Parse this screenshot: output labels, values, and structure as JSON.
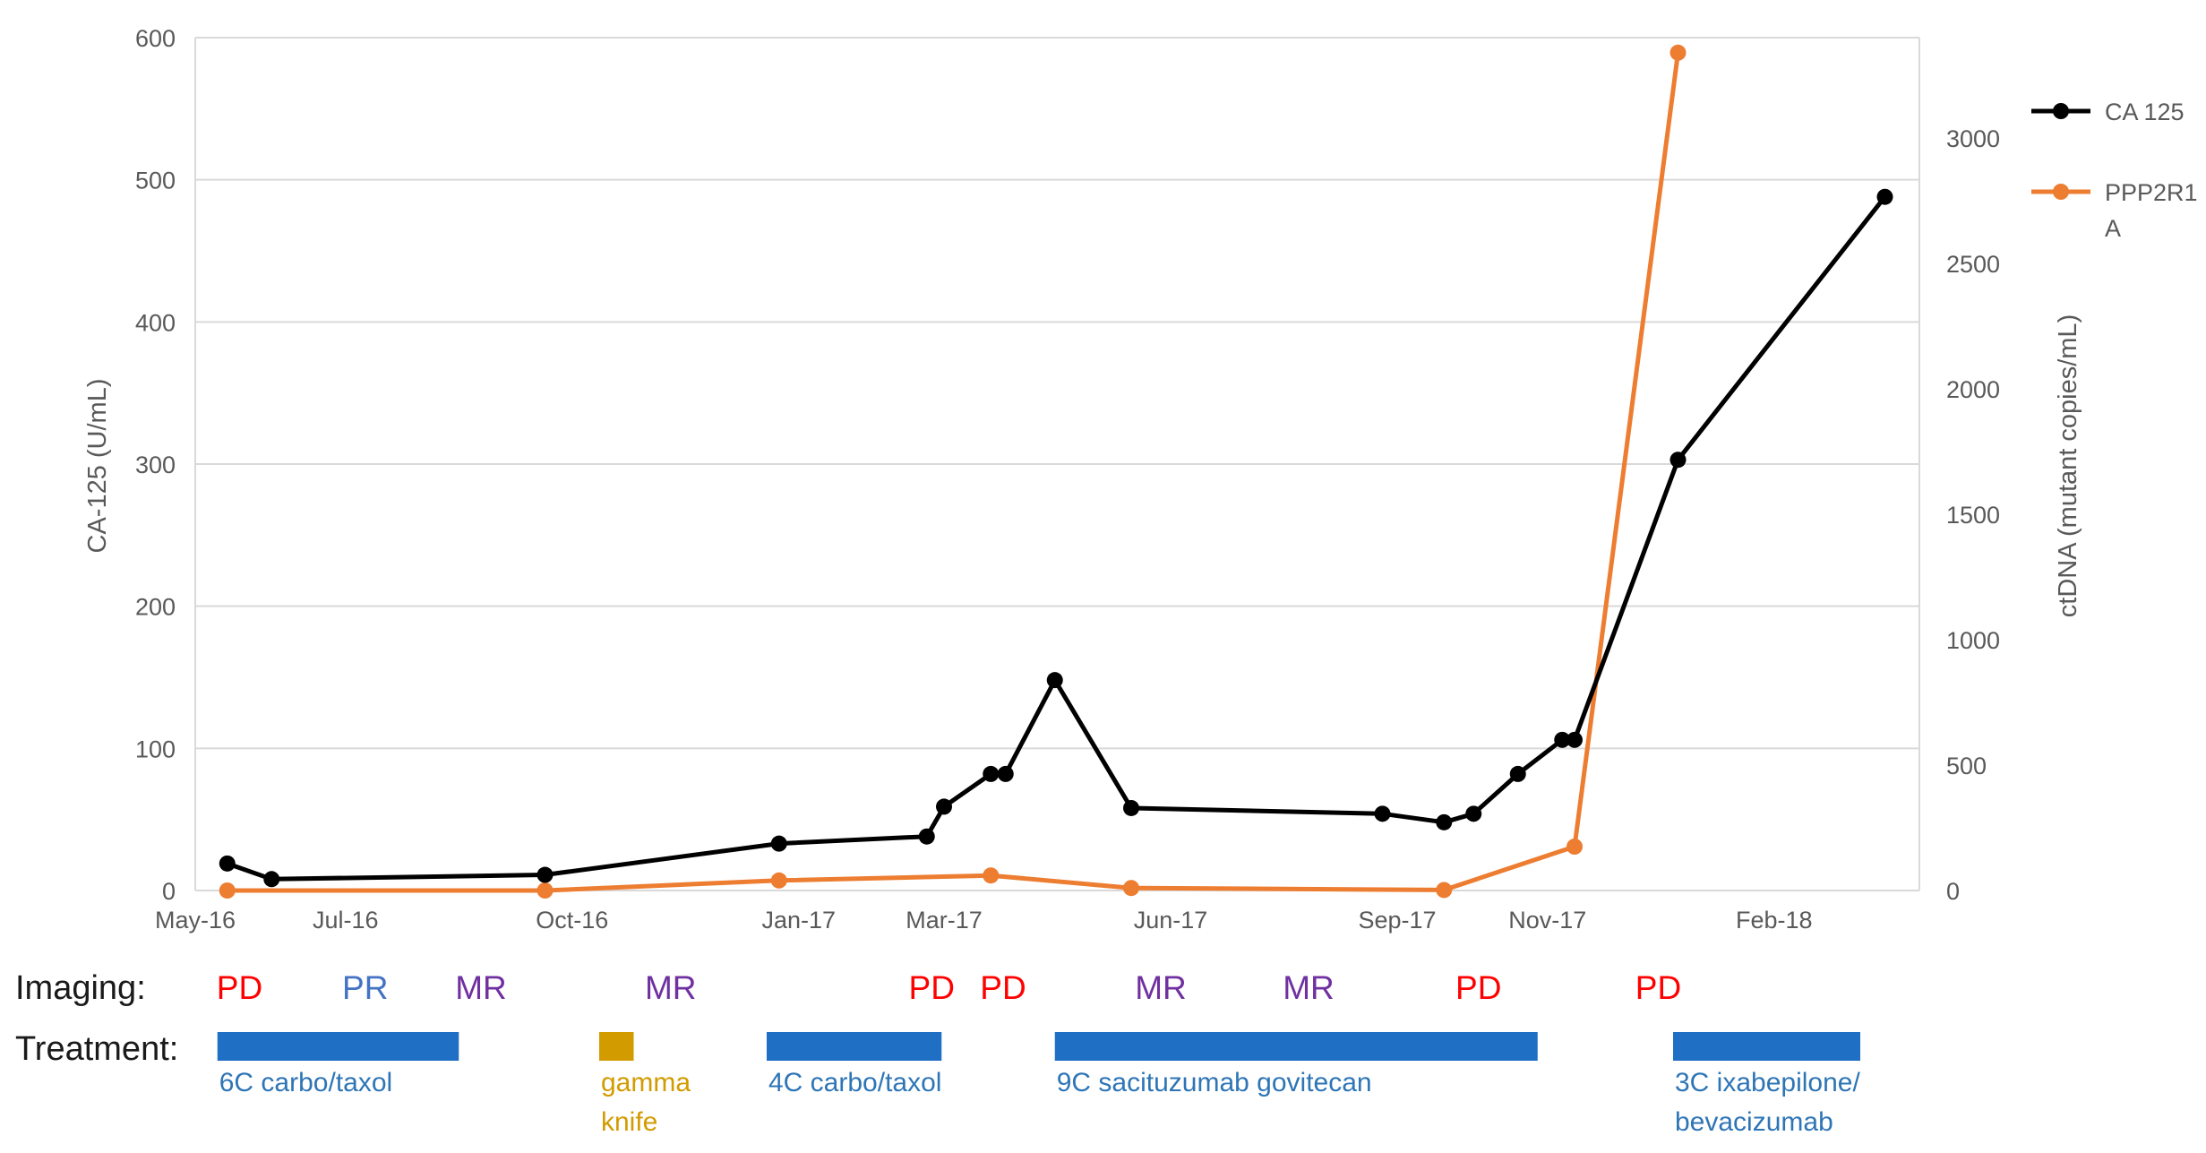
{
  "chart_data": {
    "type": "line",
    "x_axis": {
      "kind": "date",
      "range": [
        "2016-05-01",
        "2018-04-01"
      ],
      "tick_labels": [
        "May-16",
        "Jul-16",
        "Oct-16",
        "Jan-17",
        "Mar-17",
        "Jun-17",
        "Sep-17",
        "Nov-17",
        "Feb-18"
      ],
      "tick_dates": [
        "2016-05-01",
        "2016-07-01",
        "2016-10-01",
        "2017-01-01",
        "2017-03-01",
        "2017-06-01",
        "2017-09-01",
        "2017-11-01",
        "2018-02-01"
      ]
    },
    "y_left": {
      "label": "CA-125 (U/mL)",
      "range": [
        0,
        600
      ],
      "ticks": [
        0,
        100,
        200,
        300,
        400,
        500,
        600
      ]
    },
    "y_right": {
      "label": "ctDNA (mutant  copies/mL)",
      "range": [
        0,
        3400
      ],
      "ticks": [
        0,
        500,
        1000,
        1500,
        2000,
        2500,
        3000
      ]
    },
    "grid": true,
    "legend_position": "right",
    "series": [
      {
        "name": "CA 125",
        "axis": "left",
        "color": "#000000",
        "points": [
          {
            "x": "2016-05-14",
            "y": 19
          },
          {
            "x": "2016-06-01",
            "y": 8
          },
          {
            "x": "2016-09-20",
            "y": 11
          },
          {
            "x": "2016-12-24",
            "y": 33
          },
          {
            "x": "2017-02-22",
            "y": 38
          },
          {
            "x": "2017-03-01",
            "y": 59
          },
          {
            "x": "2017-03-20",
            "y": 82
          },
          {
            "x": "2017-03-26",
            "y": 82
          },
          {
            "x": "2017-04-15",
            "y": 148
          },
          {
            "x": "2017-05-16",
            "y": 58
          },
          {
            "x": "2017-08-26",
            "y": 54
          },
          {
            "x": "2017-09-20",
            "y": 48
          },
          {
            "x": "2017-10-02",
            "y": 54
          },
          {
            "x": "2017-10-20",
            "y": 82
          },
          {
            "x": "2017-11-07",
            "y": 106
          },
          {
            "x": "2017-11-12",
            "y": 106
          },
          {
            "x": "2017-12-24",
            "y": 303
          },
          {
            "x": "2018-03-18",
            "y": 488
          }
        ]
      },
      {
        "name": "PPP2R1\nA",
        "axis": "right",
        "color": "#ED7D31",
        "points": [
          {
            "x": "2016-05-14",
            "y": 0
          },
          {
            "x": "2016-09-20",
            "y": 0
          },
          {
            "x": "2016-12-24",
            "y": 40
          },
          {
            "x": "2017-03-20",
            "y": 60
          },
          {
            "x": "2017-05-16",
            "y": 10
          },
          {
            "x": "2017-09-20",
            "y": 2
          },
          {
            "x": "2017-11-12",
            "y": 175
          },
          {
            "x": "2017-12-24",
            "y": 3340
          }
        ]
      }
    ],
    "imaging": {
      "label": "Imaging:",
      "items": [
        {
          "text": "PD",
          "x": "2016-05-19",
          "color": "#FF0000"
        },
        {
          "text": "PR",
          "x": "2016-07-09",
          "color": "#4472C4"
        },
        {
          "text": "MR",
          "x": "2016-08-25",
          "color": "#7030A0"
        },
        {
          "text": "MR",
          "x": "2016-11-10",
          "color": "#7030A0"
        },
        {
          "text": "PD",
          "x": "2017-02-24",
          "color": "#FF0000"
        },
        {
          "text": "PD",
          "x": "2017-03-25",
          "color": "#FF0000"
        },
        {
          "text": "MR",
          "x": "2017-05-28",
          "color": "#7030A0"
        },
        {
          "text": "MR",
          "x": "2017-07-27",
          "color": "#7030A0"
        },
        {
          "text": "PD",
          "x": "2017-10-04",
          "color": "#FF0000"
        },
        {
          "text": "PD",
          "x": "2017-12-16",
          "color": "#FF0000"
        }
      ]
    },
    "treatment": {
      "label": "Treatment:",
      "bars": [
        {
          "start": "2016-05-10",
          "end": "2016-08-16",
          "color": "#1F6FC5",
          "text": [
            "6C carbo/taxol"
          ],
          "text_color": "#2E75B6"
        },
        {
          "start": "2016-10-12",
          "end": "2016-10-26",
          "color": "#D29B00",
          "text": [
            "gamma",
            "knife"
          ],
          "text_color": "#D29B00"
        },
        {
          "start": "2016-12-19",
          "end": "2017-02-28",
          "color": "#1F6FC5",
          "text": [
            "4C carbo/taxol"
          ],
          "text_color": "#2E75B6"
        },
        {
          "start": "2017-04-15",
          "end": "2017-10-28",
          "color": "#1F6FC5",
          "text": [
            "9C sacituzumab govitecan"
          ],
          "text_color": "#2E75B6"
        },
        {
          "start": "2017-12-22",
          "end": "2018-03-08",
          "color": "#1F6FC5",
          "text": [
            "3C ixabepilone/",
            "bevacizumab"
          ],
          "text_color": "#2E75B6"
        }
      ]
    }
  }
}
